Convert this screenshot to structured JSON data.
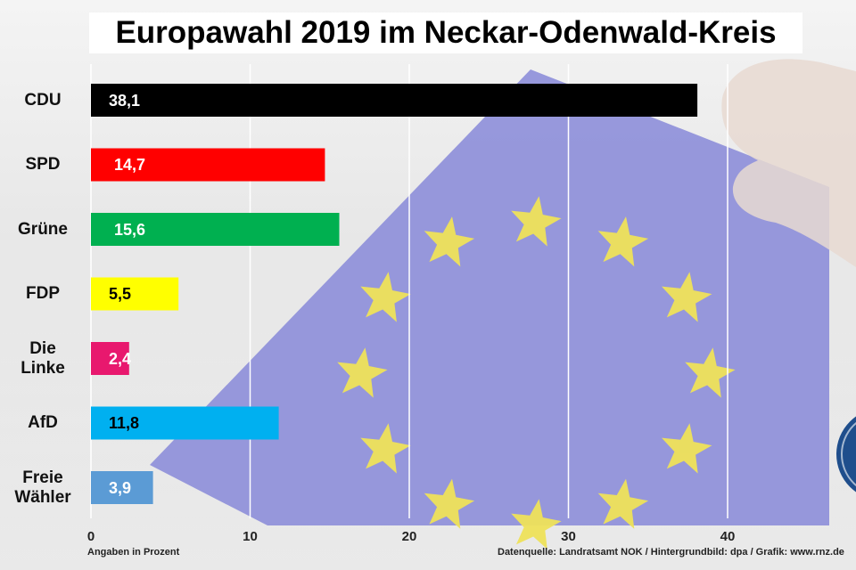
{
  "chart_data": {
    "type": "bar",
    "orientation": "horizontal",
    "title": "Europawahl 2019 im Neckar-Odenwald-Kreis",
    "categories": [
      "CDU",
      "SPD",
      "Grüne",
      "FDP",
      "Die Linke",
      "AfD",
      "Freie Wähler"
    ],
    "values": [
      38.1,
      14.7,
      15.6,
      5.5,
      2.4,
      11.8,
      3.9
    ],
    "value_labels": [
      "38,1",
      "14,7",
      "15,6",
      "5,5",
      "2,4",
      "11,8",
      "3,9"
    ],
    "colors": [
      "#000000",
      "#ff0000",
      "#00b050",
      "#ffff00",
      "#e8186e",
      "#00b0f0",
      "#5b9bd5"
    ],
    "value_text_colors": [
      "#ffffff",
      "#ffffff",
      "#ffffff",
      "#000000",
      "#ffffff",
      "#000000",
      "#ffffff"
    ],
    "xlim": [
      0,
      48
    ],
    "xticks": [
      0,
      10,
      20,
      30,
      40
    ],
    "xlabel": "Angaben in Prozent",
    "grid": true,
    "source": "Datenquelle: Landratsamt NOK / Hintergrundbild: dpa / Grafik: www.rnz.de"
  }
}
